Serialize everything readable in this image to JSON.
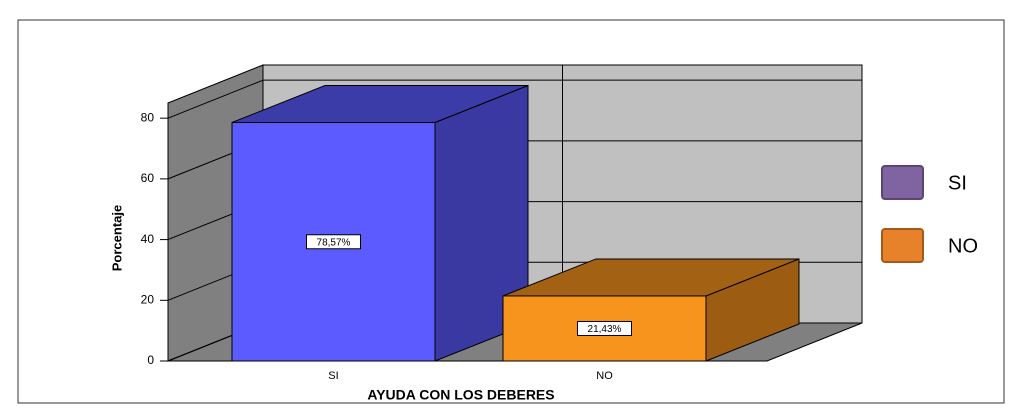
{
  "chart_data": {
    "type": "bar3d",
    "categories": [
      "SI",
      "NO"
    ],
    "values": [
      78.57,
      21.43
    ],
    "value_labels": [
      "78,57%",
      "21,43%"
    ],
    "colors": [
      "#5b5bff",
      "#f7941d"
    ],
    "ylabel": "Porcentaje",
    "xlabel": "AYUDA CON LOS DEBERES",
    "ylim": [
      0,
      85
    ],
    "yticks": [
      0,
      20,
      40,
      60,
      80
    ],
    "grid": true,
    "legend": [
      {
        "label": "SI",
        "color": "#8064a2"
      },
      {
        "label": "NO",
        "color": "#e8822a"
      }
    ]
  }
}
